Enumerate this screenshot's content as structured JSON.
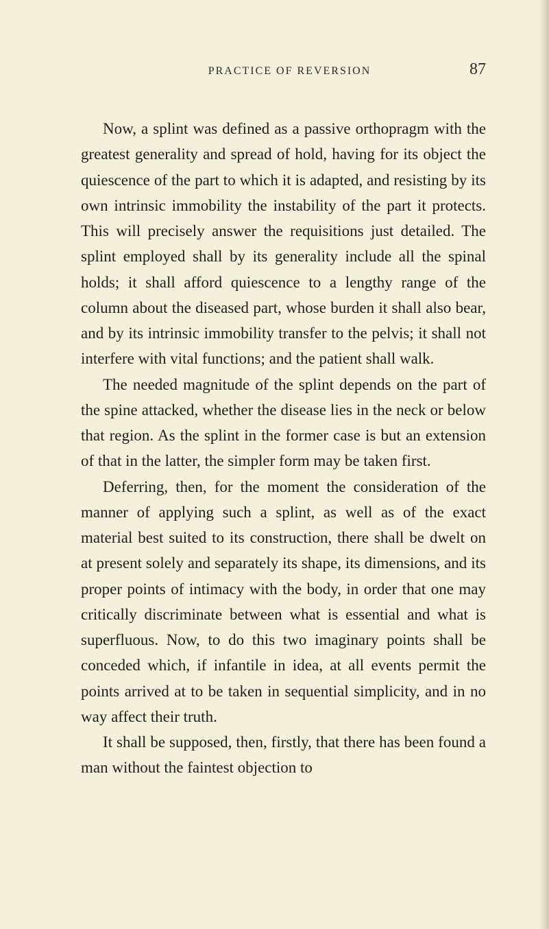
{
  "page": {
    "running_head": "PRACTICE OF REVERSION",
    "number": "87",
    "background_color": "#f5f0dc",
    "text_color": "#1e1e1e",
    "body_fontsize": 23,
    "header_fontsize": 16,
    "pagenum_fontsize": 24,
    "line_height": 1.62,
    "paragraphs": [
      "Now, a splint was defined as a passive orthopragm with the greatest generality and spread of hold, having for its object the quiescence of the part to which it is adapted, and resisting by its own intrinsic immobility the instability of the part it protects. This will precisely answer the requisitions just de­tailed. The splint employed shall by its generality include all the spinal holds; it shall afford quiescence to a lengthy range of the column about the diseased part, whose burden it shall also bear, and by its intrinsic immobility transfer to the pelvis; it shall not interfere with vital functions; and the patient shall walk.",
      "The needed magnitude of the splint depends on the part of the spine attacked, whether the disease lies in the neck or below that region. As the splint in the former case is but an extension of that in the latter, the simpler form may be taken first.",
      "Deferring, then, for the moment the consideration of the manner of applying such a splint, as well as of the exact material best suited to its construction, there shall be dwelt on at present solely and separ­ately its shape, its dimensions, and its proper points of intimacy with the body, in order that one may critically discriminate between what is essential and what is superfluous. Now, to do this two imaginary points shall be conceded which, if infantile in idea, at all events permit the points arrived at to be taken in sequential simplicity, and in no way affect their truth.",
      "It shall be supposed, then, firstly, that there has been found a man without the faintest objection to"
    ]
  }
}
